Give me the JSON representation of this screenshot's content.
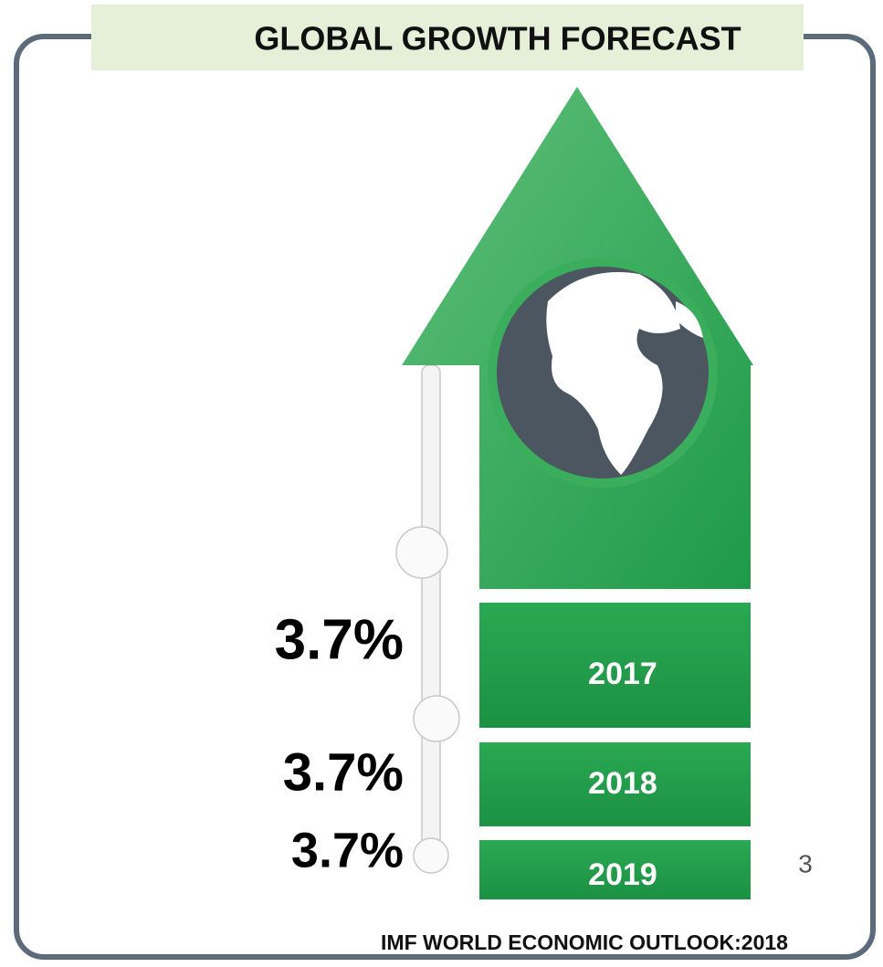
{
  "title": "GLOBAL GROWTH FORECAST",
  "rows": [
    {
      "value": "3.7%",
      "year": "2017"
    },
    {
      "value": "3.7%",
      "year": "2018"
    },
    {
      "value": "3.7%",
      "year": "2019"
    }
  ],
  "page_number": "3",
  "source": "IMF WORLD ECONOMIC OUTLOOK:2018"
}
